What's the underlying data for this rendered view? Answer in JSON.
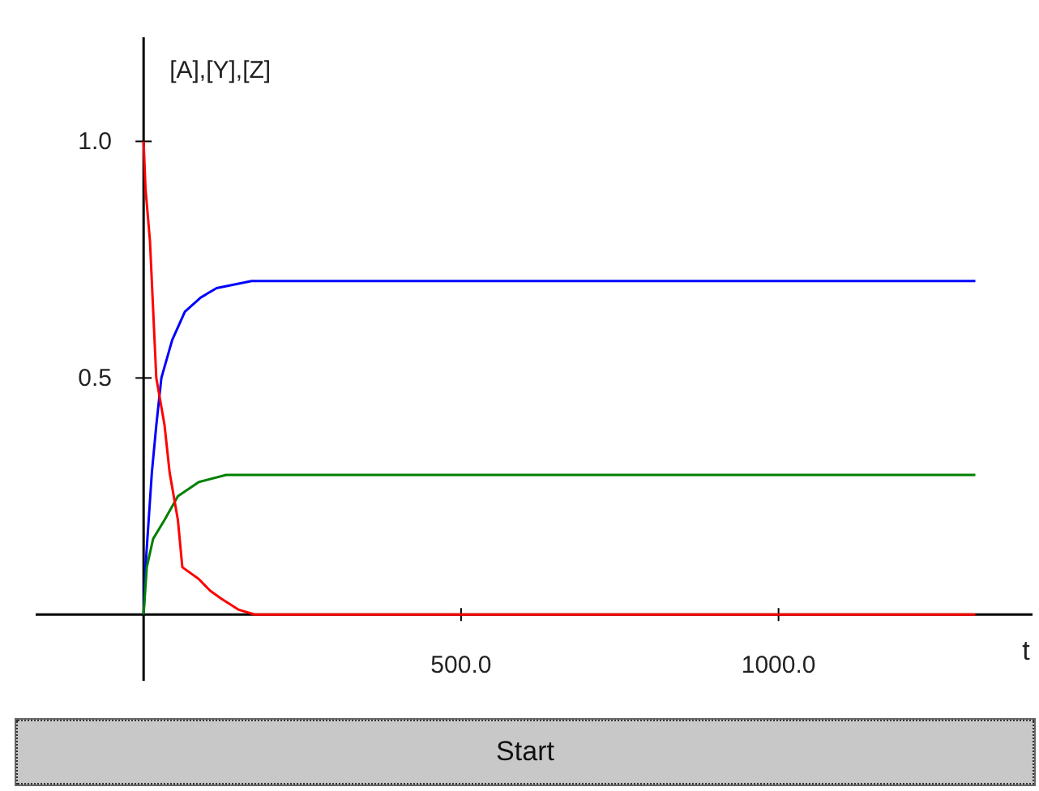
{
  "chart_data": {
    "type": "line",
    "xlabel": "t",
    "ylabel": "[A],[Y],[Z]",
    "xlim": [
      -170,
      1400
    ],
    "ylim": [
      -0.14,
      1.22
    ],
    "xticks": [
      {
        "value": 500,
        "label": "500.0"
      },
      {
        "value": 1000,
        "label": "1000.0"
      }
    ],
    "yticks": [
      {
        "value": 0.5,
        "label": "0.5"
      },
      {
        "value": 1,
        "label": "1.0"
      }
    ],
    "grid": false,
    "marker": "none",
    "line_style": "solid",
    "series": [
      {
        "color": "#0000ff",
        "x": [
          0,
          3,
          13,
          20,
          28,
          45,
          65,
          90,
          115,
          170,
          1310
        ],
        "values": [
          0,
          0.1,
          0.3,
          0.4,
          0.5,
          0.58,
          0.64,
          0.67,
          0.69,
          0.705,
          0.705
        ]
      },
      {
        "color": "#008000",
        "x": [
          0,
          5,
          15,
          33,
          54,
          87,
          130,
          1310
        ],
        "values": [
          0,
          0.1,
          0.16,
          0.2,
          0.25,
          0.28,
          0.295,
          0.295
        ]
      },
      {
        "color": "#ff0000",
        "x": [
          0,
          3,
          10,
          20,
          33,
          41,
          54,
          61,
          87,
          105,
          122,
          150,
          175,
          1310
        ],
        "values": [
          1,
          0.9,
          0.79,
          0.5,
          0.4,
          0.3,
          0.2,
          0.1,
          0.075,
          0.05,
          0.034,
          0.01,
          0,
          0
        ]
      }
    ],
    "annotations": [
      "Start"
    ]
  }
}
